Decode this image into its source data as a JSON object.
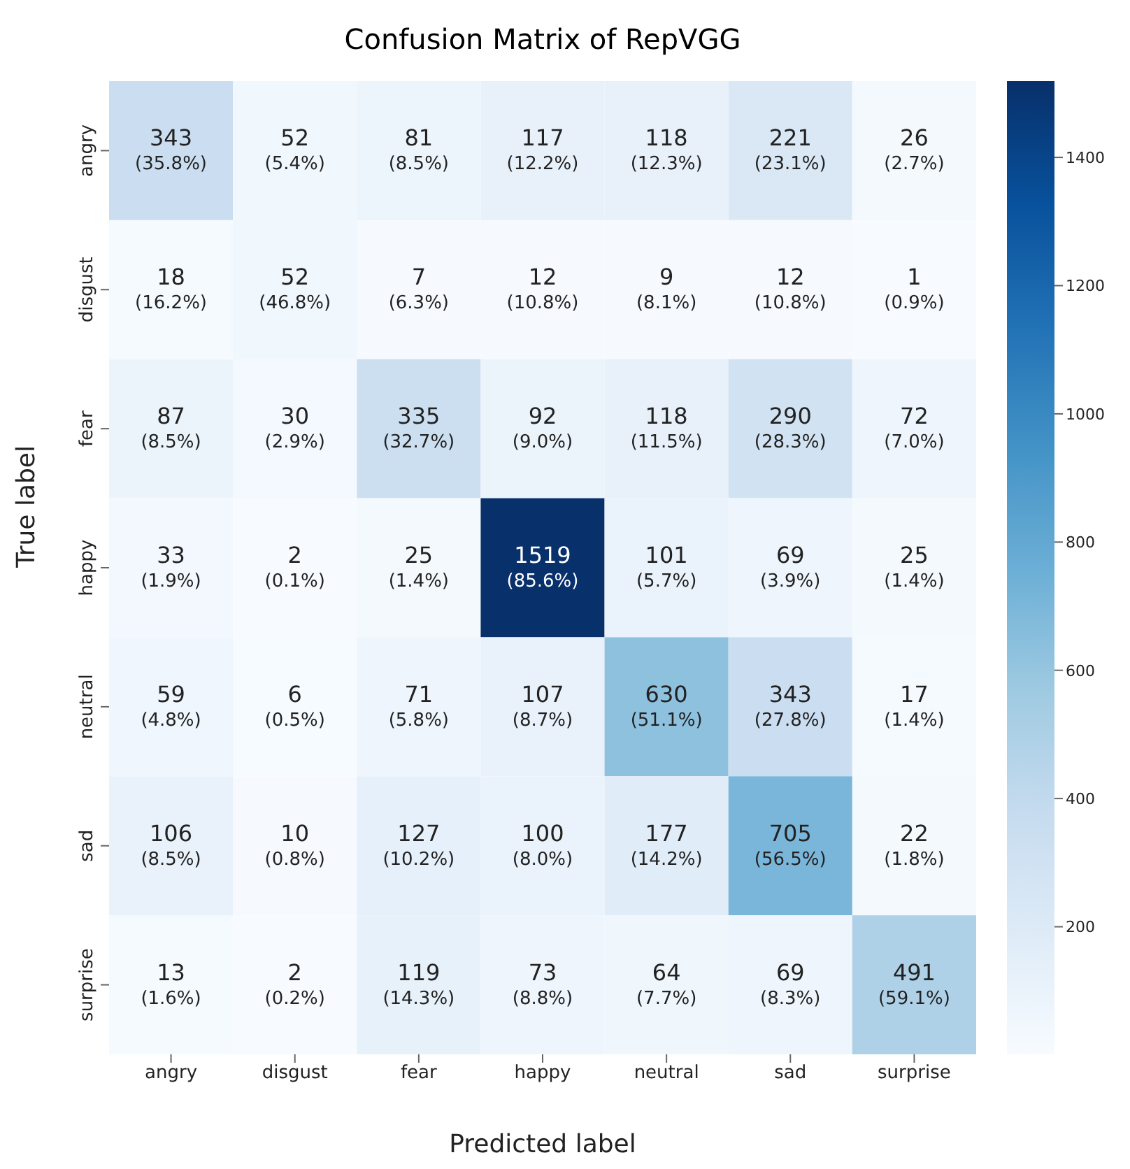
{
  "chart_data": {
    "type": "heatmap",
    "title": "Confusion Matrix of RepVGG",
    "xlabel": "Predicted label",
    "ylabel": "True label",
    "categories": [
      "angry",
      "disgust",
      "fear",
      "happy",
      "neutral",
      "sad",
      "surprise"
    ],
    "y_categories": [
      "angry",
      "disgust",
      "fear",
      "happy",
      "neutral",
      "sad",
      "surprise"
    ],
    "cells": [
      [
        343,
        52,
        81,
        117,
        118,
        221,
        26
      ],
      [
        18,
        52,
        7,
        12,
        9,
        12,
        1
      ],
      [
        87,
        30,
        335,
        92,
        118,
        290,
        72
      ],
      [
        33,
        2,
        25,
        1519,
        101,
        69,
        25
      ],
      [
        59,
        6,
        71,
        107,
        630,
        343,
        17
      ],
      [
        106,
        10,
        127,
        100,
        177,
        705,
        22
      ],
      [
        13,
        2,
        119,
        73,
        64,
        69,
        491
      ]
    ],
    "cell_labels": [
      [
        "343\n(35.8%)",
        "52\n(5.4%)",
        "81\n(8.5%)",
        "117\n(12.2%)",
        "118\n(12.3%)",
        "221\n(23.1%)",
        "26\n(2.7%)"
      ],
      [
        "18\n(16.2%)",
        "52\n(46.8%)",
        "7\n(6.3%)",
        "12\n(10.8%)",
        "9\n(8.1%)",
        "12\n(10.8%)",
        "1\n(0.9%)"
      ],
      [
        "87\n(8.5%)",
        "30\n(2.9%)",
        "335\n(32.7%)",
        "92\n(9.0%)",
        "118\n(11.5%)",
        "290\n(28.3%)",
        "72\n(7.0%)"
      ],
      [
        "33\n(1.9%)",
        "2\n(0.1%)",
        "25\n(1.4%)",
        "1519\n(85.6%)",
        "101\n(5.7%)",
        "69\n(3.9%)",
        "25\n(1.4%)"
      ],
      [
        "59\n(4.8%)",
        "6\n(0.5%)",
        "71\n(5.8%)",
        "107\n(8.7%)",
        "630\n(51.1%)",
        "343\n(27.8%)",
        "17\n(1.4%)"
      ],
      [
        "106\n(8.5%)",
        "10\n(0.8%)",
        "127\n(10.2%)",
        "100\n(8.0%)",
        "177\n(14.2%)",
        "705\n(56.5%)",
        "22\n(1.8%)"
      ],
      [
        "13\n(1.6%)",
        "2\n(0.2%)",
        "119\n(14.3%)",
        "73\n(8.8%)",
        "64\n(7.7%)",
        "69\n(8.3%)",
        "491\n(59.1%)"
      ]
    ],
    "clim": [
      1,
      1519
    ],
    "cticks": [
      200,
      400,
      600,
      800,
      1000,
      1200,
      1400
    ]
  }
}
